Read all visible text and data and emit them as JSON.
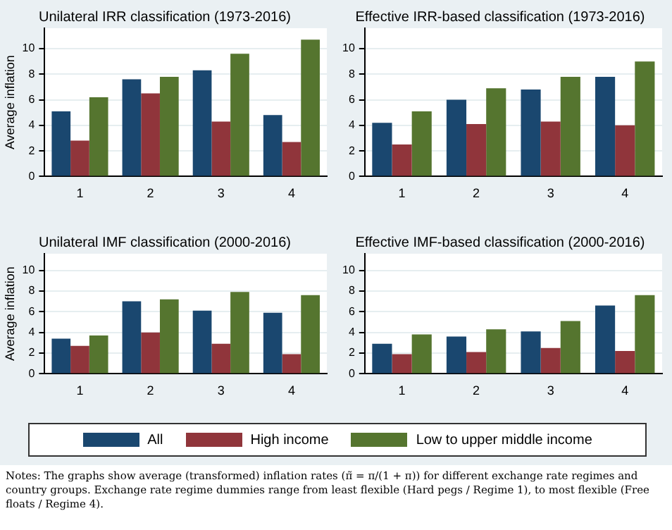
{
  "chart_data": [
    {
      "type": "bar",
      "title": "Unilateral IRR classification (1973-2016)",
      "ylabel": "Average inflation",
      "categories": [
        "1",
        "2",
        "3",
        "4"
      ],
      "ylim": [
        0,
        11.6
      ],
      "yticks": [
        0,
        2,
        4,
        6,
        8,
        10
      ],
      "grid": "y",
      "legend": "bottom",
      "series": [
        {
          "name": "All",
          "color": "#1a476f",
          "values": [
            5.1,
            7.6,
            8.3,
            4.8
          ]
        },
        {
          "name": "High income",
          "color": "#90353b",
          "values": [
            2.8,
            6.5,
            4.3,
            2.7
          ]
        },
        {
          "name": "Low to upper middle income",
          "color": "#55752f",
          "values": [
            6.2,
            7.8,
            9.6,
            10.7
          ]
        }
      ]
    },
    {
      "type": "bar",
      "title": "Effective IRR-based classification (1973-2016)",
      "categories": [
        "1",
        "2",
        "3",
        "4"
      ],
      "ylim": [
        0,
        11.6
      ],
      "yticks": [
        0,
        2,
        4,
        6,
        8,
        10
      ],
      "grid": "y",
      "series": [
        {
          "color": "#1a476f",
          "values": [
            4.2,
            6.0,
            6.8,
            7.8
          ]
        },
        {
          "color": "#90353b",
          "values": [
            2.5,
            4.1,
            4.3,
            4.0
          ]
        },
        {
          "color": "#55752f",
          "values": [
            5.1,
            6.9,
            7.8,
            9.0
          ]
        }
      ]
    },
    {
      "type": "bar",
      "title": "Unilateral IMF classification (2000-2016)",
      "ylabel": "Average inflation",
      "categories": [
        "1",
        "2",
        "3",
        "4"
      ],
      "ylim": [
        0,
        11.6
      ],
      "yticks": [
        0,
        2,
        4,
        6,
        8,
        10
      ],
      "grid": "y",
      "series": [
        {
          "color": "#1a476f",
          "values": [
            3.4,
            7.0,
            6.1,
            5.9
          ]
        },
        {
          "color": "#90353b",
          "values": [
            2.7,
            4.0,
            2.9,
            1.9
          ]
        },
        {
          "color": "#55752f",
          "values": [
            3.7,
            7.2,
            7.9,
            7.6
          ]
        }
      ]
    },
    {
      "type": "bar",
      "title": "Effective IMF-based classification (2000-2016)",
      "categories": [
        "1",
        "2",
        "3",
        "4"
      ],
      "ylim": [
        0,
        11.6
      ],
      "yticks": [
        0,
        2,
        4,
        6,
        8,
        10
      ],
      "grid": "y",
      "annotations": [
        "Notes: The graphs show average (transformed) inflation rates (π̃ = π/(1 + π)) for different exchange rate regimes and country groups. Exchange rate regime dummies range from least flexible (Hard pegs / Regime 1), to most flexible (Free floats / Regime 4)."
      ],
      "series": [
        {
          "color": "#1a476f",
          "values": [
            2.9,
            3.6,
            4.1,
            6.6
          ]
        },
        {
          "color": "#90353b",
          "values": [
            1.9,
            2.1,
            2.5,
            2.2
          ]
        },
        {
          "color": "#55752f",
          "values": [
            3.8,
            4.3,
            5.1,
            7.6
          ]
        }
      ]
    }
  ]
}
